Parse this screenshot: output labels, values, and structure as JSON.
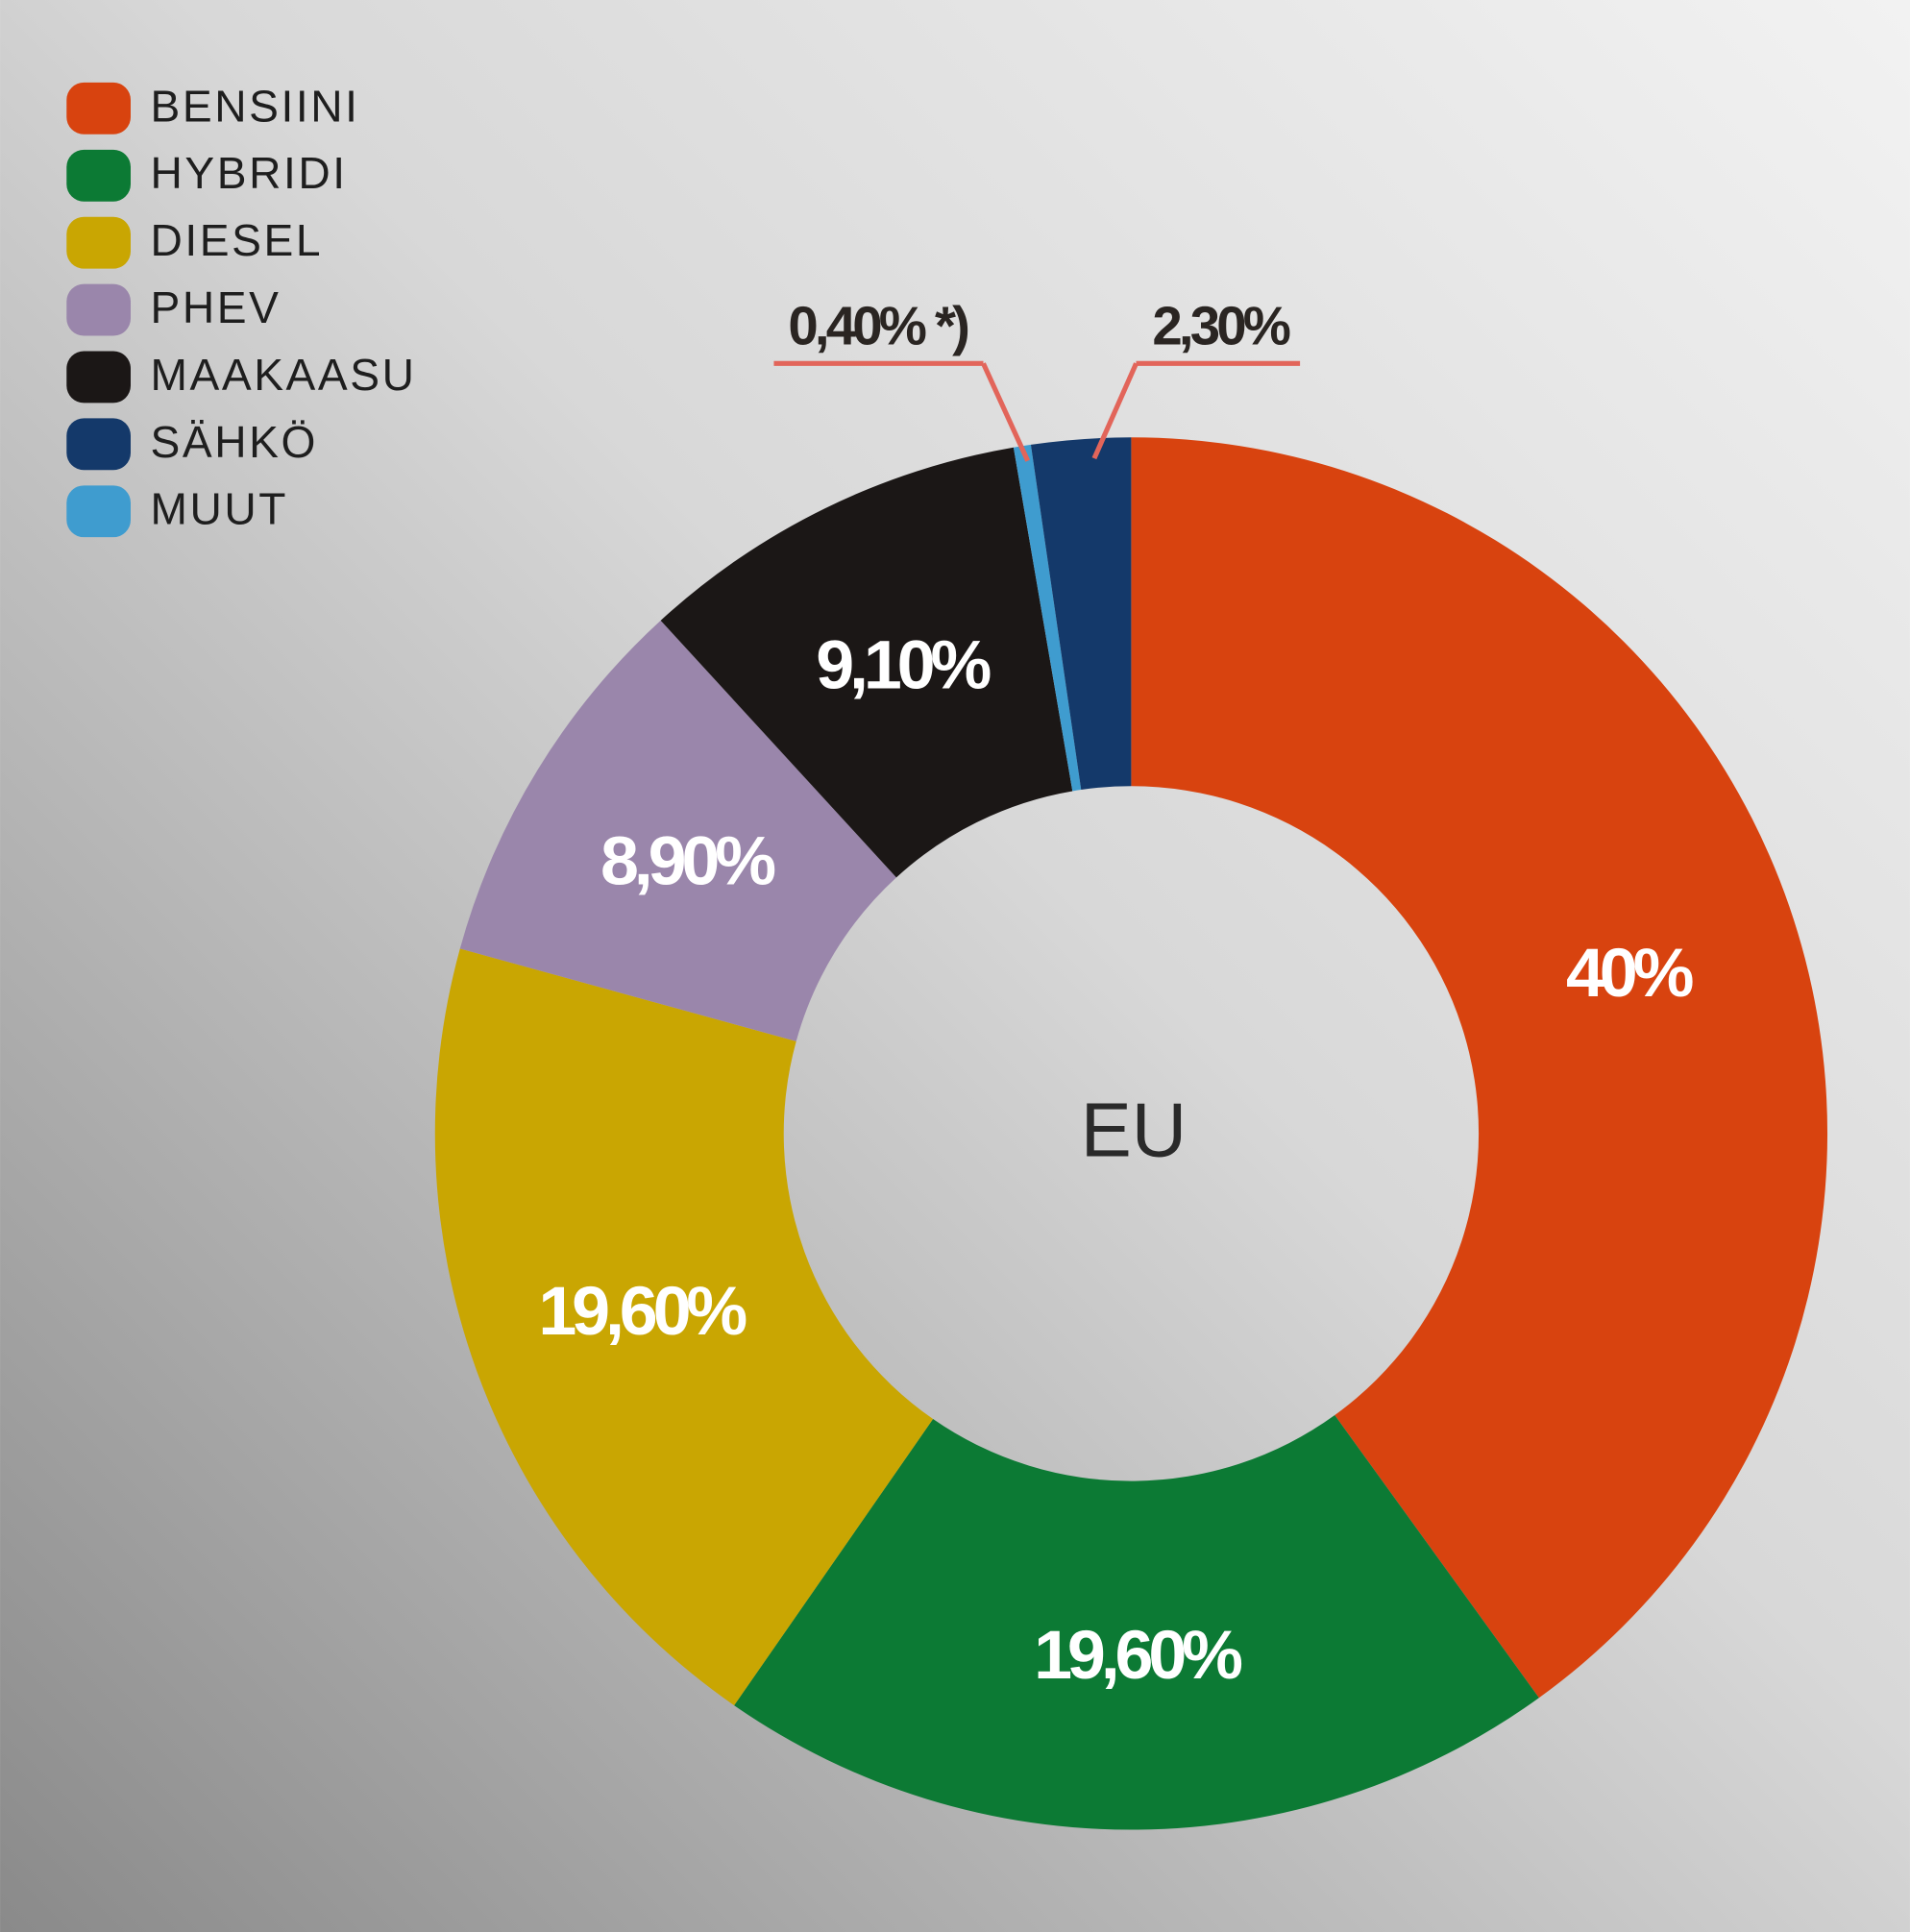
{
  "chart_data": {
    "type": "donut",
    "center_label": "EU",
    "categories": [
      "BENSIINI",
      "HYBRIDI",
      "DIESEL",
      "PHEV",
      "MAAKAASU",
      "SÄHKÖ",
      "MUUT"
    ],
    "values": [
      40,
      19.6,
      19.6,
      8.9,
      9.1,
      2.3,
      0.4
    ],
    "value_labels": [
      "40%",
      "19,60%",
      "19,60%",
      "8,90%",
      "9,10%",
      "2,30%",
      "0,40% *)"
    ],
    "colors": [
      "#d8430f",
      "#0c7a34",
      "#c9a602",
      "#9a86ab",
      "#1b1716",
      "#14396a",
      "#3f9ccf"
    ],
    "legend": "upper left"
  }
}
